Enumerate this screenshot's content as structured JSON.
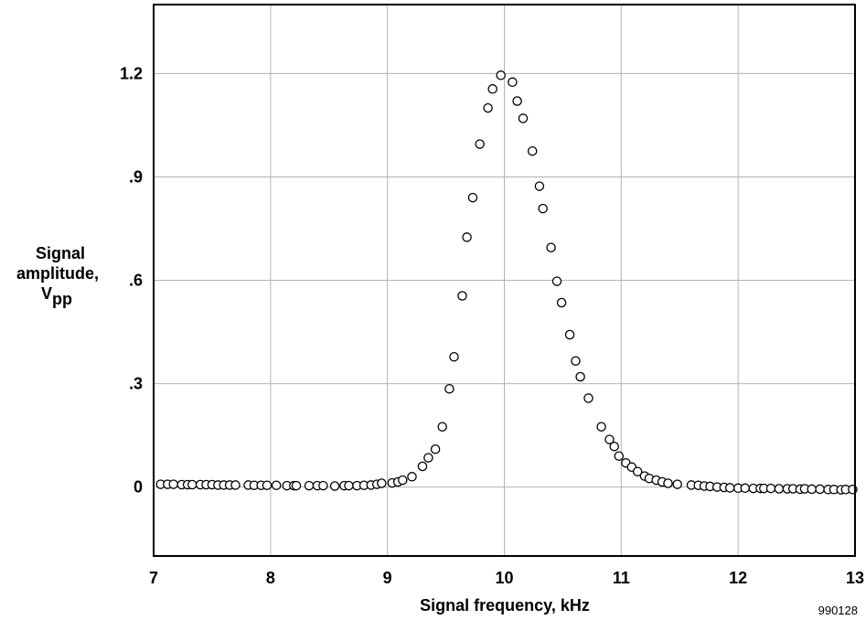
{
  "chart_data": {
    "type": "scatter",
    "xlabel": "Signal frequency, kHz",
    "ylabel": {
      "line1": "Signal",
      "line2": "amplitude,",
      "line3_main": "V",
      "line3_sub": "pp"
    },
    "xlim": [
      7,
      13
    ],
    "ylim": [
      -0.2,
      1.4
    ],
    "xticks": [
      {
        "value": 7,
        "label": "7"
      },
      {
        "value": 8,
        "label": "8"
      },
      {
        "value": 9,
        "label": "9"
      },
      {
        "value": 10,
        "label": "10"
      },
      {
        "value": 11,
        "label": "11"
      },
      {
        "value": 12,
        "label": "12"
      },
      {
        "value": 13,
        "label": "13"
      }
    ],
    "yticks": [
      {
        "value": 0,
        "label": "0"
      },
      {
        "value": 0.3,
        "label": ".3"
      },
      {
        "value": 0.6,
        "label": ".6"
      },
      {
        "value": 0.9,
        "label": ".9"
      },
      {
        "value": 1.2,
        "label": "1.2"
      }
    ],
    "grid": true,
    "marker": "open-circle",
    "figure_id": "990128",
    "series": [
      {
        "points": [
          [
            7.06,
            0.008
          ],
          [
            7.12,
            0.008
          ],
          [
            7.17,
            0.008
          ],
          [
            7.24,
            0.007
          ],
          [
            7.29,
            0.007
          ],
          [
            7.33,
            0.007
          ],
          [
            7.4,
            0.007
          ],
          [
            7.45,
            0.007
          ],
          [
            7.5,
            0.007
          ],
          [
            7.55,
            0.006
          ],
          [
            7.6,
            0.006
          ],
          [
            7.65,
            0.006
          ],
          [
            7.7,
            0.006
          ],
          [
            7.81,
            0.006
          ],
          [
            7.86,
            0.005
          ],
          [
            7.92,
            0.005
          ],
          [
            7.97,
            0.005
          ],
          [
            8.05,
            0.005
          ],
          [
            8.14,
            0.004
          ],
          [
            8.2,
            0.004
          ],
          [
            8.22,
            0.004
          ],
          [
            8.33,
            0.004
          ],
          [
            8.4,
            0.004
          ],
          [
            8.45,
            0.004
          ],
          [
            8.55,
            0.003
          ],
          [
            8.63,
            0.004
          ],
          [
            8.67,
            0.004
          ],
          [
            8.74,
            0.004
          ],
          [
            8.8,
            0.005
          ],
          [
            8.86,
            0.006
          ],
          [
            8.91,
            0.008
          ],
          [
            8.95,
            0.011
          ],
          [
            9.04,
            0.012
          ],
          [
            9.09,
            0.015
          ],
          [
            9.13,
            0.02
          ],
          [
            9.21,
            0.03
          ],
          [
            9.3,
            0.06
          ],
          [
            9.35,
            0.085
          ],
          [
            9.41,
            0.11
          ],
          [
            9.47,
            0.175
          ],
          [
            9.53,
            0.285
          ],
          [
            9.57,
            0.378
          ],
          [
            9.64,
            0.555
          ],
          [
            9.68,
            0.725
          ],
          [
            9.73,
            0.84
          ],
          [
            9.79,
            0.995
          ],
          [
            9.86,
            1.1
          ],
          [
            9.9,
            1.155
          ],
          [
            9.97,
            1.195
          ],
          [
            10.07,
            1.175
          ],
          [
            10.11,
            1.12
          ],
          [
            10.16,
            1.07
          ],
          [
            10.24,
            0.975
          ],
          [
            10.3,
            0.873
          ],
          [
            10.33,
            0.808
          ],
          [
            10.4,
            0.695
          ],
          [
            10.45,
            0.597
          ],
          [
            10.49,
            0.535
          ],
          [
            10.56,
            0.442
          ],
          [
            10.61,
            0.366
          ],
          [
            10.65,
            0.32
          ],
          [
            10.72,
            0.258
          ],
          [
            10.83,
            0.175
          ],
          [
            10.9,
            0.138
          ],
          [
            10.94,
            0.118
          ],
          [
            10.98,
            0.09
          ],
          [
            11.04,
            0.07
          ],
          [
            11.09,
            0.058
          ],
          [
            11.14,
            0.045
          ],
          [
            11.2,
            0.032
          ],
          [
            11.24,
            0.025
          ],
          [
            11.3,
            0.02
          ],
          [
            11.35,
            0.015
          ],
          [
            11.4,
            0.011
          ],
          [
            11.48,
            0.008
          ],
          [
            11.6,
            0.006
          ],
          [
            11.66,
            0.005
          ],
          [
            11.71,
            0.003
          ],
          [
            11.76,
            0.002
          ],
          [
            11.82,
            0.0
          ],
          [
            11.88,
            -0.001
          ],
          [
            11.93,
            -0.002
          ],
          [
            12.0,
            -0.003
          ],
          [
            12.06,
            -0.003
          ],
          [
            12.13,
            -0.004
          ],
          [
            12.19,
            -0.004
          ],
          [
            12.22,
            -0.004
          ],
          [
            12.28,
            -0.004
          ],
          [
            12.35,
            -0.005
          ],
          [
            12.42,
            -0.005
          ],
          [
            12.47,
            -0.005
          ],
          [
            12.53,
            -0.006
          ],
          [
            12.57,
            -0.005
          ],
          [
            12.63,
            -0.006
          ],
          [
            12.7,
            -0.006
          ],
          [
            12.77,
            -0.007
          ],
          [
            12.82,
            -0.007
          ],
          [
            12.88,
            -0.008
          ],
          [
            12.92,
            -0.007
          ],
          [
            12.98,
            -0.007
          ]
        ]
      }
    ]
  }
}
